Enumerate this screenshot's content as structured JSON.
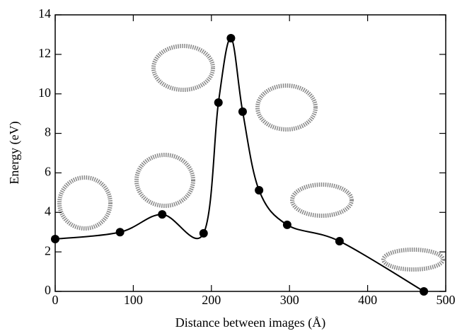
{
  "chart_data": {
    "type": "line",
    "x_label": "Distance between images (Å)",
    "y_label": "Energy (eV)",
    "x": [
      0,
      83,
      137,
      190,
      209,
      225,
      240,
      261,
      297,
      364,
      472
    ],
    "series": [
      {
        "color": "#000000",
        "values": [
          2.65,
          3.0,
          3.9,
          2.94,
          9.56,
          12.82,
          9.1,
          5.12,
          3.37,
          2.54,
          0.0
        ]
      }
    ],
    "xlim": [
      0,
      500
    ],
    "xticks": [
      0,
      100,
      200,
      300,
      400,
      500
    ],
    "ylim": [
      0,
      14
    ],
    "yticks": [
      0,
      2,
      4,
      6,
      8,
      10,
      12,
      14
    ],
    "markers": true,
    "smooth": true
  }
}
